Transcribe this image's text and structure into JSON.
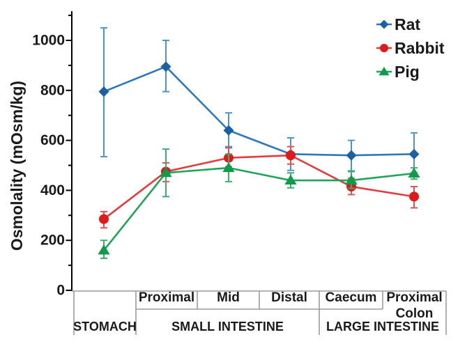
{
  "figure": {
    "background": "#ffffff",
    "description": "Line chart of gastrointestinal fluid osmolality by GI segment for three species"
  },
  "chart_data": {
    "type": "line",
    "title": "",
    "xlabel": "",
    "ylabel": "Osmolality (mOsm/kg)",
    "ylim": [
      0,
      1150
    ],
    "ytick_major": [
      0,
      200,
      400,
      600,
      800,
      1000
    ],
    "ytick_minor": [
      100,
      300,
      500,
      700,
      900,
      1100
    ],
    "grid": false,
    "categories": [
      "Stomach",
      "Small intestine proximal",
      "Small intestine mid",
      "Small intestine distal",
      "Caecum",
      "Proximal colon"
    ],
    "x_axis_table": {
      "sub_labels": [
        "",
        "Proximal",
        "Mid",
        "Distal",
        "Caecum",
        "Proximal\nColon"
      ],
      "groups": [
        {
          "label": "STOMACH",
          "start": 0,
          "end": 1
        },
        {
          "label": "SMALL INTESTINE",
          "start": 1,
          "end": 4
        },
        {
          "label": "LARGE INTESTINE",
          "start": 4,
          "end": 6
        }
      ]
    },
    "series": [
      {
        "name": "Rat",
        "marker": "diamond",
        "marker_color": "#1B5FA6",
        "line_color": "#2B79BC",
        "error_color": "#4D94CB",
        "values": [
          795,
          895,
          640,
          545,
          540,
          545
        ],
        "err_lo": [
          535,
          795,
          575,
          480,
          475,
          470
        ],
        "err_hi": [
          1050,
          1000,
          710,
          610,
          600,
          630
        ]
      },
      {
        "name": "Rabbit",
        "marker": "circle",
        "marker_color": "#DE1A1C",
        "line_color": "#E43B3C",
        "error_color": "#E4504F",
        "values": [
          285,
          475,
          530,
          540,
          415,
          375
        ],
        "err_lo": [
          250,
          435,
          495,
          505,
          383,
          330
        ],
        "err_hi": [
          315,
          510,
          570,
          575,
          448,
          415
        ]
      },
      {
        "name": "Pig",
        "marker": "triangle",
        "marker_color": "#0F9B49",
        "line_color": "#1FA457",
        "error_color": "#3BAE6C",
        "values": [
          160,
          470,
          490,
          440,
          440,
          468
        ],
        "err_lo": [
          128,
          375,
          435,
          410,
          408,
          445
        ],
        "err_hi": [
          200,
          565,
          545,
          470,
          478,
          490
        ]
      }
    ],
    "legend": {
      "position": "top-right",
      "items": [
        "Rat",
        "Rabbit",
        "Pig"
      ]
    }
  },
  "colors": {
    "y_axis": "#000000",
    "x_axis_and_table": "#9B9B9B",
    "text": "#1A1A1A"
  }
}
